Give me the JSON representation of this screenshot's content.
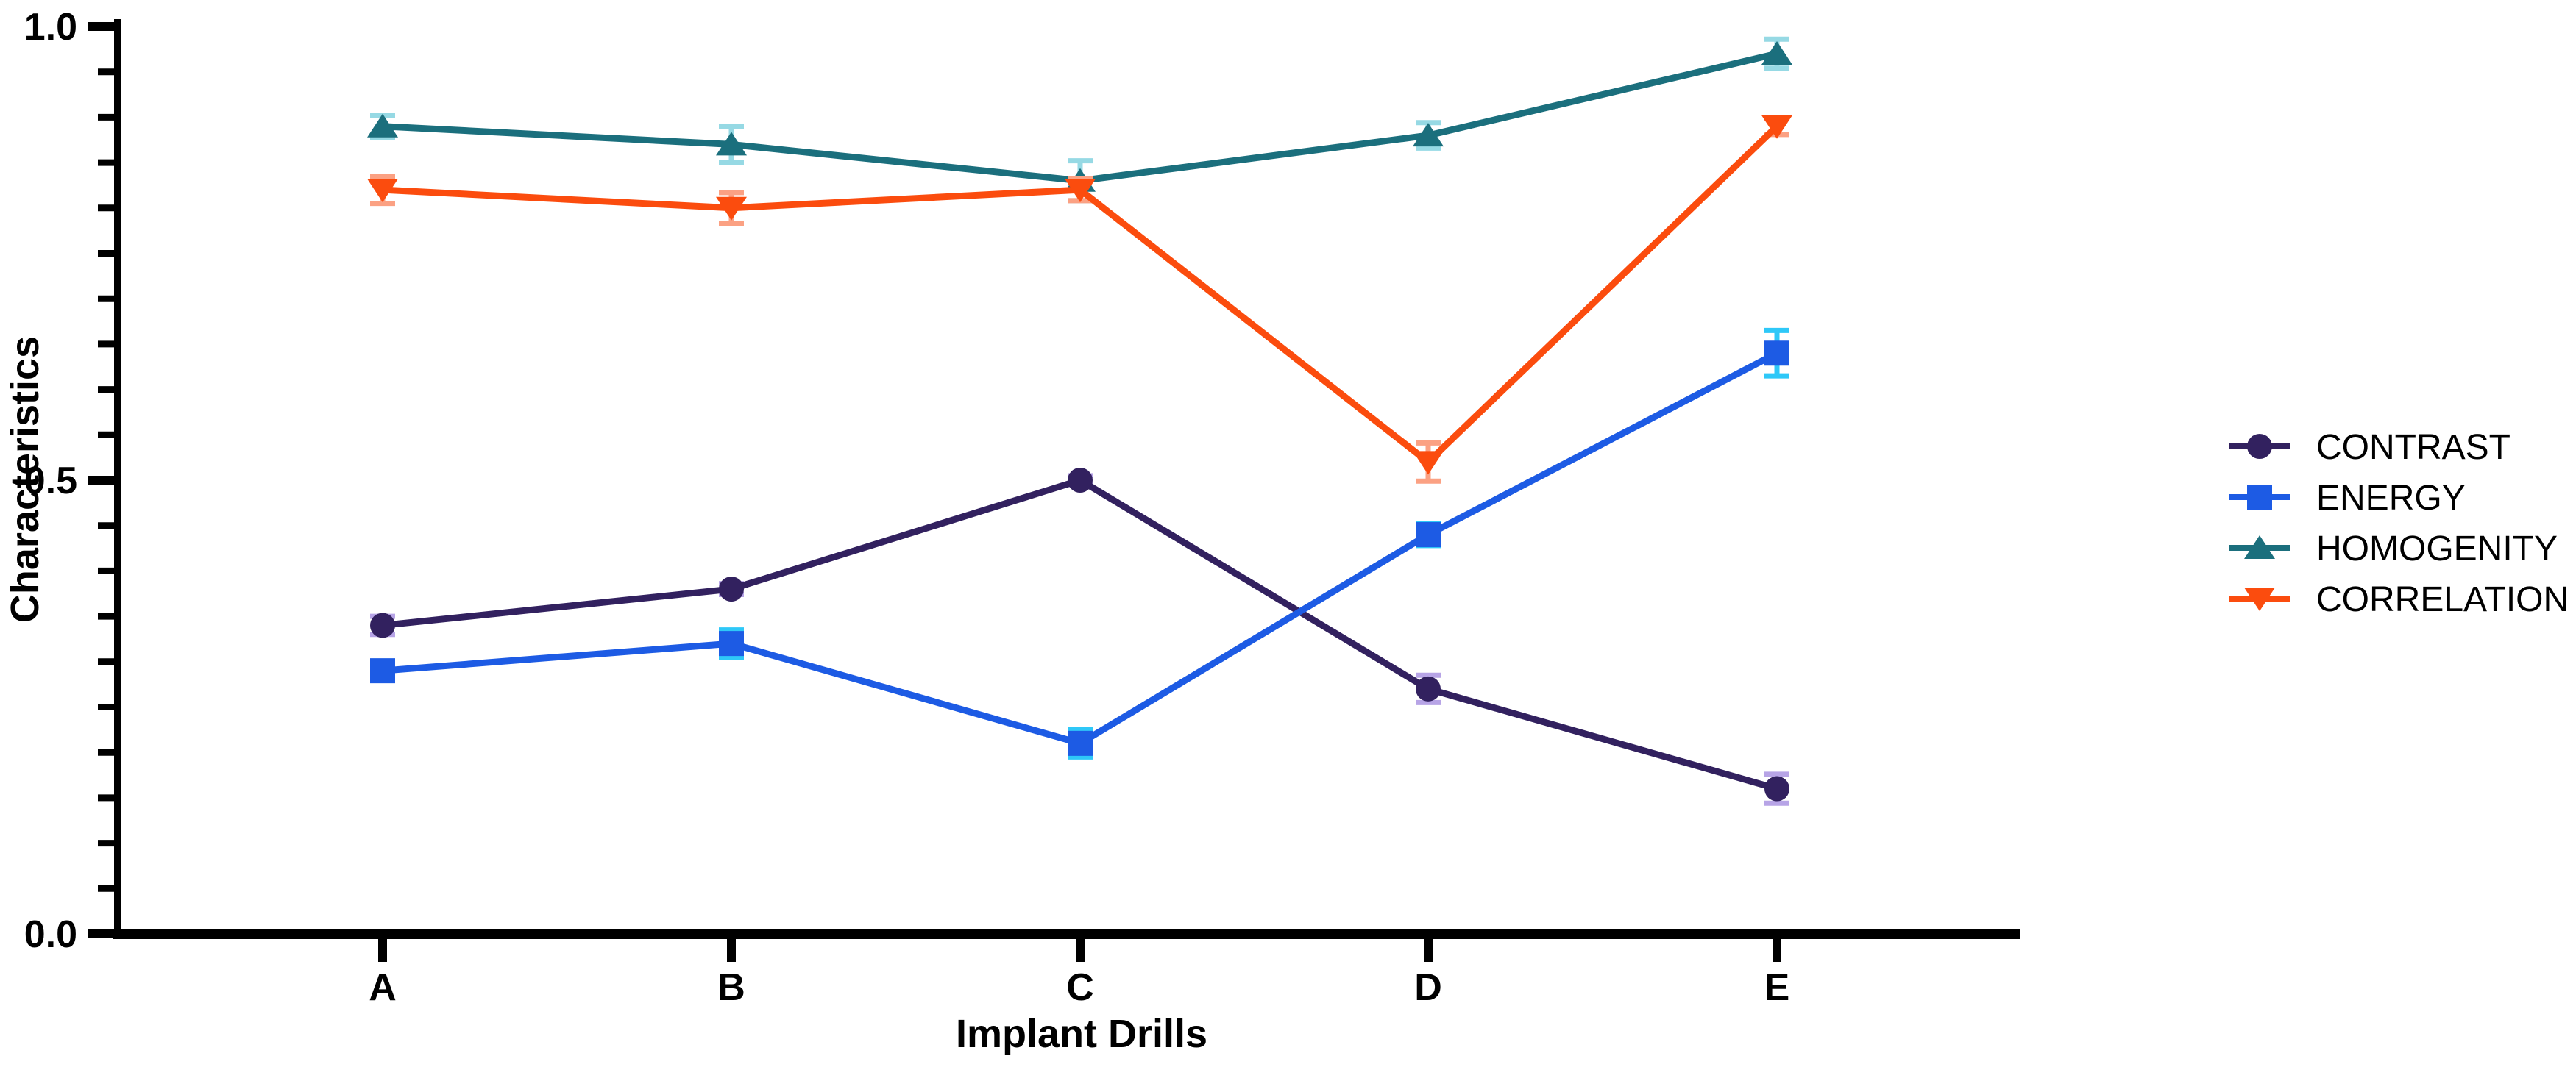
{
  "figure": {
    "background": "#ffffff",
    "axis_color": "#000000",
    "text_color": "#000000"
  },
  "chart_data": {
    "type": "line",
    "title": "",
    "xlabel": "Implant Drills",
    "ylabel": "Characteristics",
    "categories": [
      "A",
      "B",
      "C",
      "D",
      "E"
    ],
    "ylim": [
      0.0,
      1.0
    ],
    "yticks_major": [
      0.0,
      0.5,
      1.0
    ],
    "ytick_labels": [
      "0.0",
      "0.5",
      "1.0"
    ],
    "ytick_minor_step": 0.05,
    "grid": false,
    "error_bars": true,
    "legend_position": "right",
    "series": [
      {
        "name": "CONTRAST",
        "marker": "circle",
        "color": "#32215f",
        "error_color": "#b7a4e6",
        "values": [
          0.34,
          0.38,
          0.5,
          0.27,
          0.16
        ],
        "errors": [
          0.01,
          0.006,
          0.005,
          0.015,
          0.016
        ]
      },
      {
        "name": "ENERGY",
        "marker": "square",
        "color": "#1d5be4",
        "error_color": "#2ec8f8",
        "values": [
          0.29,
          0.32,
          0.21,
          0.44,
          0.64
        ],
        "errors": [
          0.008,
          0.015,
          0.015,
          0.012,
          0.025
        ]
      },
      {
        "name": "HOMOGENITY",
        "marker": "triangle-up",
        "color": "#1b6f7d",
        "error_color": "#96d9e4",
        "values": [
          0.89,
          0.87,
          0.83,
          0.88,
          0.97
        ],
        "errors": [
          0.012,
          0.02,
          0.022,
          0.014,
          0.016
        ]
      },
      {
        "name": "CORRELATION",
        "marker": "triangle-down",
        "color": "#fb4c0e",
        "error_color": "#fba183",
        "values": [
          0.82,
          0.8,
          0.82,
          0.52,
          0.89
        ],
        "errors": [
          0.015,
          0.017,
          0.012,
          0.021,
          0.009
        ]
      }
    ]
  }
}
